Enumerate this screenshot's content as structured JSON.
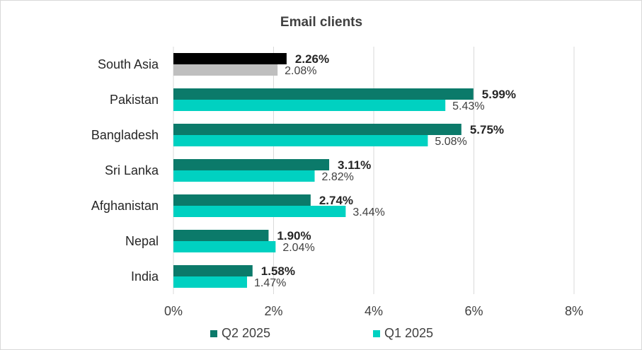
{
  "chart_data": {
    "type": "bar",
    "orientation": "horizontal",
    "title": "Email clients",
    "categories": [
      "South Asia",
      "Pakistan",
      "Bangladesh",
      "Sri Lanka",
      "Afghanistan",
      "Nepal",
      "India"
    ],
    "series": [
      {
        "name": "Q2 2025",
        "values": [
          2.26,
          5.99,
          5.75,
          3.11,
          2.74,
          1.9,
          1.58
        ],
        "labels": [
          "2.26%",
          "5.99%",
          "5.75%",
          "3.11%",
          "2.74%",
          "1.90%",
          "1.58%"
        ],
        "color": "#0b7a6a",
        "highlight_color": "#000000"
      },
      {
        "name": "Q1 2025",
        "values": [
          2.08,
          5.43,
          5.08,
          2.82,
          3.44,
          2.04,
          1.47
        ],
        "labels": [
          "2.08%",
          "5.43%",
          "5.08%",
          "2.82%",
          "3.44%",
          "2.04%",
          "1.47%"
        ],
        "color": "#00d1c1",
        "highlight_color": "#bfbfbf"
      }
    ],
    "xlim": [
      0,
      8
    ],
    "xticks": [
      0,
      2,
      4,
      6,
      8
    ],
    "xtick_labels": [
      "0%",
      "2%",
      "4%",
      "6%",
      "8%"
    ],
    "xlabel": "",
    "ylabel": "",
    "grid": true,
    "legend_position": "bottom"
  }
}
